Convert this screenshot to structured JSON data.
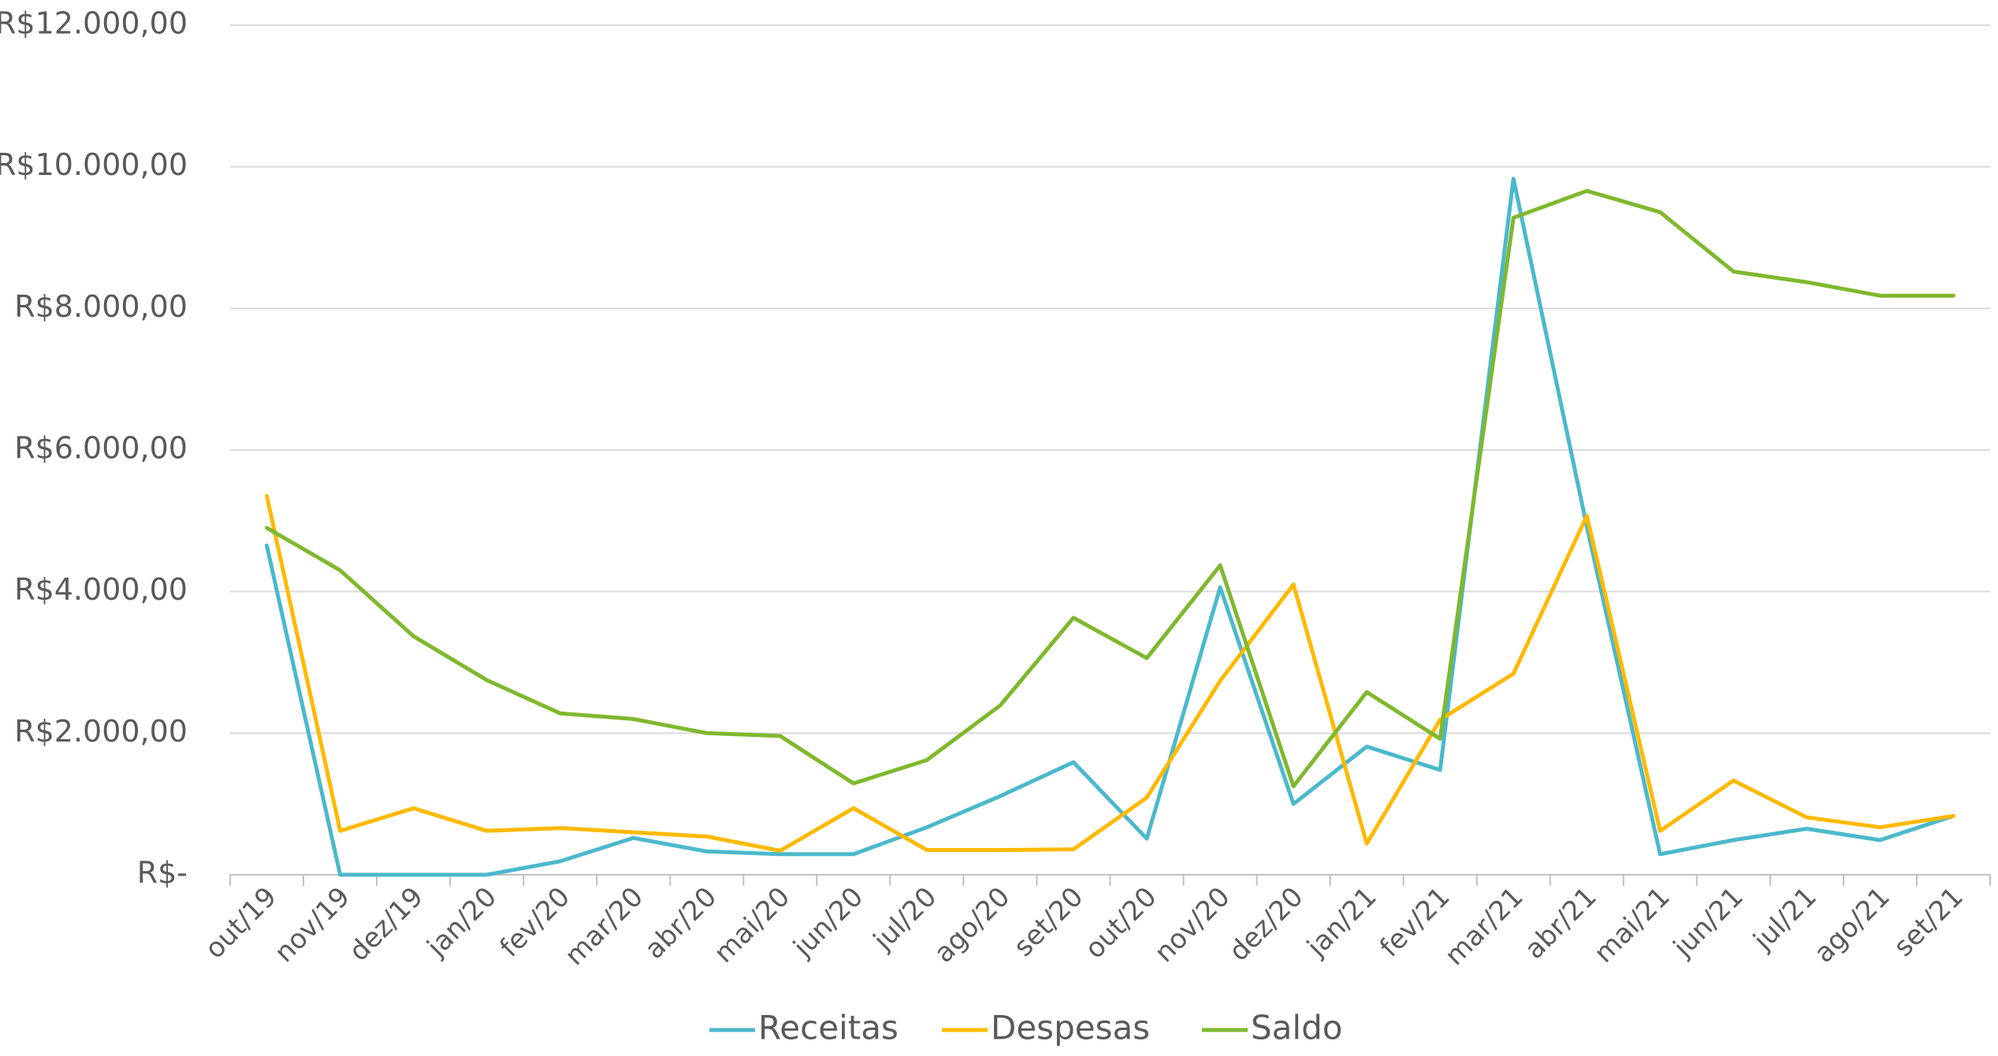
{
  "chart_data": {
    "type": "line",
    "categories": [
      "out/19",
      "nov/19",
      "dez/19",
      "jan/20",
      "fev/20",
      "mar/20",
      "abr/20",
      "mai/20",
      "jun/20",
      "jul/20",
      "ago/20",
      "set/20",
      "out/20",
      "nov/20",
      "dez/20",
      "jan/21",
      "fev/21",
      "mar/21",
      "abr/21",
      "mai/21",
      "jun/21",
      "jul/21",
      "ago/21",
      "set/21"
    ],
    "series": [
      {
        "name": "Receitas",
        "color": "#4BB8CC",
        "values": [
          4650,
          0,
          0,
          0,
          190,
          520,
          330,
          290,
          290,
          670,
          1110,
          1590,
          510,
          4060,
          1000,
          1810,
          1480,
          9830,
          4920,
          290,
          490,
          650,
          490,
          830
        ]
      },
      {
        "name": "Despesas",
        "color": "#FFB900",
        "values": [
          5350,
          620,
          940,
          620,
          660,
          600,
          540,
          340,
          940,
          350,
          350,
          360,
          1090,
          2740,
          4100,
          440,
          2190,
          2840,
          5070,
          620,
          1330,
          810,
          670,
          830
        ]
      },
      {
        "name": "Saldo",
        "color": "#7FB82E",
        "values": [
          4900,
          4300,
          3370,
          2750,
          2280,
          2200,
          2000,
          1960,
          1290,
          1620,
          2390,
          3630,
          3060,
          4370,
          1250,
          2580,
          1920,
          9280,
          9660,
          9360,
          8520,
          8370,
          8180,
          8180
        ]
      }
    ],
    "y_ticks": [
      "R$-",
      "R$2.000,00",
      "R$4.000,00",
      "R$6.000,00",
      "R$8.000,00",
      "R$10.000,00",
      "R$12.000,00"
    ],
    "ylim": [
      0,
      12000
    ],
    "grid": true,
    "legend_position": "bottom-center"
  }
}
